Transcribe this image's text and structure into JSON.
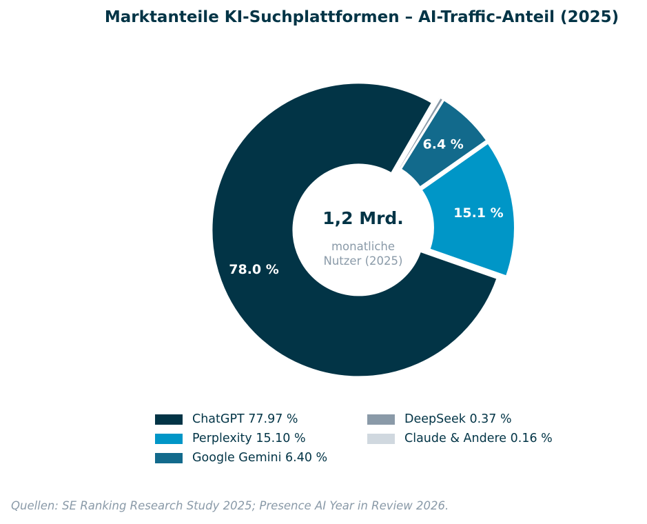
{
  "title": "Marktanteile KI-Suchplattformen – AI-Traffic-Anteil (2025)",
  "chart_data": {
    "type": "pie",
    "variant": "donut",
    "title": "Marktanteile KI-Suchplattformen – AI-Traffic-Anteil (2025)",
    "center_text": {
      "value": "1,2 Mrd.",
      "line1": "monatliche",
      "line2": "Nutzer (2025)"
    },
    "slices": [
      {
        "name": "ChatGPT",
        "value": 77.97,
        "label": "78.0 %",
        "legend": "ChatGPT  77.97 %",
        "color": "#023446"
      },
      {
        "name": "Perplexity",
        "value": 15.1,
        "label": "15.1 %",
        "legend": "Perplexity  15.10 %",
        "color": "#0096c7"
      },
      {
        "name": "Google Gemini",
        "value": 6.4,
        "label": "6.4 %",
        "legend": "Google Gemini  6.40 %",
        "color": "#126a8c"
      },
      {
        "name": "DeepSeek",
        "value": 0.37,
        "label": "",
        "legend": "DeepSeek  0.37 %",
        "color": "#8a9aa8"
      },
      {
        "name": "Claude & Andere",
        "value": 0.16,
        "label": "",
        "legend": "Claude & Andere  0.16 %",
        "color": "#d0d8df"
      }
    ],
    "legend_position": "bottom"
  },
  "source": "Quellen: SE Ranking Research Study 2025; Presence AI Year in Review 2026."
}
